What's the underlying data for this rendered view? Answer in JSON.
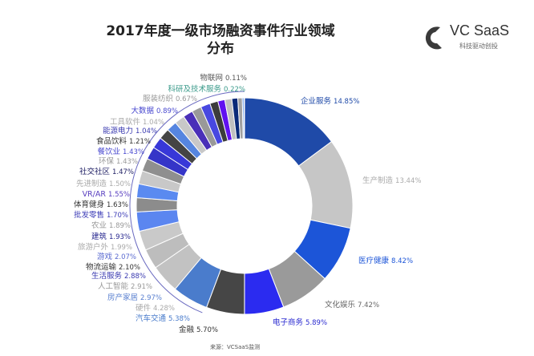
{
  "chart_data": {
    "type": "pie",
    "donut": true,
    "title": "2017年度一级市场融资事件行业领域分布",
    "start": "top, clockwise",
    "slices": [
      {
        "label": "企业服务",
        "value": 14.85,
        "color": "#1f4aa8",
        "label_color": "#1f4aa8"
      },
      {
        "label": "生产制造",
        "value": 13.44,
        "color": "#c6c6c6",
        "label_color": "#aaaaaa"
      },
      {
        "label": "医疗健康",
        "value": 8.42,
        "color": "#1c55d8",
        "label_color": "#1c55d8"
      },
      {
        "label": "文化娱乐",
        "value": 7.42,
        "color": "#9a9a9a",
        "label_color": "#666666"
      },
      {
        "label": "电子商务",
        "value": 5.89,
        "color": "#2b2bf0",
        "label_color": "#2b2bd0"
      },
      {
        "label": "金融",
        "value": 5.7,
        "color": "#464646",
        "label_color": "#333333"
      },
      {
        "label": "汽车交通",
        "value": 5.38,
        "color": "#4a7ccc",
        "label_color": "#4a7ccc"
      },
      {
        "label": "硬件",
        "value": 4.28,
        "color": "#c2c2c2",
        "label_color": "#aaaaaa"
      },
      {
        "label": "房产家居",
        "value": 2.97,
        "color": "#bdbdbd",
        "label_color": "#5a80d0"
      },
      {
        "label": "人工智能",
        "value": 2.91,
        "color": "#c9c9c9",
        "label_color": "#999999"
      },
      {
        "label": "生活服务",
        "value": 2.88,
        "color": "#5b86f0",
        "label_color": "#3a3ab0"
      },
      {
        "label": "物流运输",
        "value": 2.1,
        "color": "#8c8c8c",
        "label_color": "#333333"
      },
      {
        "label": "游戏",
        "value": 2.07,
        "color": "#5a8af0",
        "label_color": "#5a6ad0"
      },
      {
        "label": "旅游户外",
        "value": 1.99,
        "color": "#c8c8c8",
        "label_color": "#aaaaaa"
      },
      {
        "label": "建筑",
        "value": 1.93,
        "color": "#8f8f8f",
        "label_color": "#2a2a90"
      },
      {
        "label": "农业",
        "value": 1.89,
        "color": "#3535c8",
        "label_color": "#999999"
      },
      {
        "label": "批发零售",
        "value": 1.7,
        "color": "#3838d8",
        "label_color": "#4040b8"
      },
      {
        "label": "体育健身",
        "value": 1.63,
        "color": "#444444",
        "label_color": "#333333"
      },
      {
        "label": "VR/AR",
        "value": 1.55,
        "color": "#5585e0",
        "label_color": "#5a40c0"
      },
      {
        "label": "先进制造",
        "value": 1.5,
        "color": "#c8c8c8",
        "label_color": "#aaaaaa"
      },
      {
        "label": "社交社区",
        "value": 1.47,
        "color": "#4a2fb8",
        "label_color": "#222266"
      },
      {
        "label": "环保",
        "value": 1.43,
        "color": "#999999",
        "label_color": "#999999"
      },
      {
        "label": "餐饮业",
        "value": 1.43,
        "color": "#4848e0",
        "label_color": "#4a4ad0"
      },
      {
        "label": "食品饮料",
        "value": 1.21,
        "color": "#3c3c3c",
        "label_color": "#333333"
      },
      {
        "label": "能源电力",
        "value": 1.04,
        "color": "#6010f0",
        "label_color": "#3a3ab0"
      },
      {
        "label": "工具软件",
        "value": 1.04,
        "color": "#c0c0c0",
        "label_color": "#aaaaaa"
      },
      {
        "label": "大数据",
        "value": 0.89,
        "color": "#0a2a78",
        "label_color": "#4a4ad0"
      },
      {
        "label": "服装纺织",
        "value": 0.67,
        "color": "#a0a0a0",
        "label_color": "#999999"
      },
      {
        "label": "科研及技术服务",
        "value": 0.22,
        "color": "#1f6ae0",
        "label_color": "#3a9a8a"
      },
      {
        "label": "物联网",
        "value": 0.11,
        "color": "#444444",
        "label_color": "#555555"
      }
    ]
  },
  "logo": {
    "name": "VC SaaS",
    "tagline": "科技驱动创投"
  },
  "source": "来源：VCSaaS监测"
}
